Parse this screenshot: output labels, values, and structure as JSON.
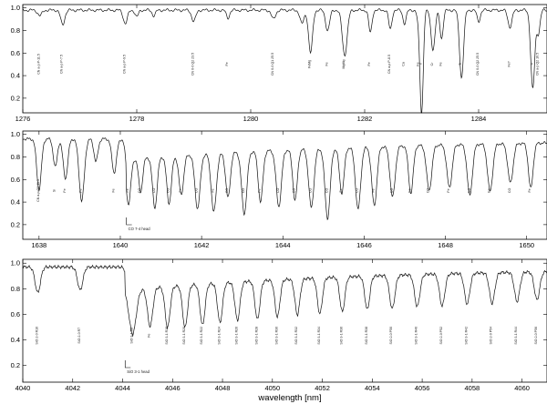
{
  "chart_data": {
    "xlabel": "wavelength [nm]",
    "panels": [
      {
        "type": "line",
        "xlim": [
          1276,
          1285.2
        ],
        "ylim": [
          0.07,
          1.03
        ],
        "xticks": [
          1276,
          1278,
          1280,
          1282,
          1284
        ],
        "yticks": [
          0.2,
          0.4,
          0.6,
          0.8,
          1.0
        ],
        "ytick_labels": [
          "0.2",
          "0.4",
          "0.6",
          "0.8",
          "1.0"
        ],
        "continuum": 0.98,
        "lines": [
          {
            "x": 1276.3,
            "depth": 0.05,
            "width": 0.05,
            "label": "CN a-p P-11.5"
          },
          {
            "x": 1276.7,
            "depth": 0.13,
            "width": 0.05,
            "label": "CN a-p P-7.5"
          },
          {
            "x": 1277.8,
            "depth": 0.12,
            "width": 0.05,
            "label": "CN a-p P-9.5"
          },
          {
            "x": 1278.0,
            "depth": 0.06,
            "width": 0.04,
            "label": ""
          },
          {
            "x": 1278.3,
            "depth": 0.05,
            "width": 0.04,
            "label": ""
          },
          {
            "x": 1279.0,
            "depth": 0.1,
            "width": 0.05,
            "label": "CN 0-0 Q2 23.5"
          },
          {
            "x": 1279.6,
            "depth": 0.07,
            "width": 0.04,
            "label": "Fe"
          },
          {
            "x": 1280.4,
            "depth": 0.08,
            "width": 0.05,
            "label": "CN 0-0 Q1 25.5"
          },
          {
            "x": 1280.9,
            "depth": 0.12,
            "width": 0.05,
            "label": ""
          },
          {
            "x": 1281.05,
            "depth": 0.38,
            "width": 0.05,
            "label": "FeMg"
          },
          {
            "x": 1281.35,
            "depth": 0.18,
            "width": 0.05,
            "label": "Fe"
          },
          {
            "x": 1281.65,
            "depth": 0.4,
            "width": 0.06,
            "label": "MgMg"
          },
          {
            "x": 1282.1,
            "depth": 0.2,
            "width": 0.04,
            "label": "Fe"
          },
          {
            "x": 1282.45,
            "depth": 0.17,
            "width": 0.04,
            "label": "CN a-p P-8.5"
          },
          {
            "x": 1282.7,
            "depth": 0.12,
            "width": 0.04,
            "label": "Ca"
          },
          {
            "x": 1282.95,
            "depth": 0.1,
            "width": 0.04,
            "label": "Fe"
          },
          {
            "x": 1283.0,
            "depth": 0.9,
            "width": 0.04,
            "label": "Ti"
          },
          {
            "x": 1283.2,
            "depth": 0.35,
            "width": 0.05,
            "label": "Cr"
          },
          {
            "x": 1283.35,
            "depth": 0.25,
            "width": 0.04,
            "label": "Fe"
          },
          {
            "x": 1283.7,
            "depth": 0.6,
            "width": 0.05,
            "label": "Ti"
          },
          {
            "x": 1284.0,
            "depth": 0.1,
            "width": 0.04,
            "label": "CN 0-0 Q2 25.5"
          },
          {
            "x": 1284.55,
            "depth": 0.15,
            "width": 0.05,
            "label": "Fe?"
          },
          {
            "x": 1284.95,
            "depth": 0.7,
            "width": 0.05,
            "label": "Ti"
          },
          {
            "x": 1285.05,
            "depth": 0.2,
            "width": 0.04,
            "label": "CN a-p Q2 10.5"
          }
        ],
        "band_labels": []
      },
      {
        "type": "line",
        "xlim": [
          1637.6,
          1650.5
        ],
        "ylim": [
          0.07,
          1.03
        ],
        "xticks": [
          1638,
          1640,
          1642,
          1644,
          1646,
          1648,
          1650
        ],
        "yticks": [
          0.2,
          0.4,
          0.6,
          0.8,
          1.0
        ],
        "ytick_labels": [
          "0.2",
          "0.4",
          "0.6",
          "0.8",
          "1.0"
        ],
        "continuum": 0.96,
        "lines": [
          {
            "x": 1638.0,
            "depth": 0.45,
            "width": 0.08,
            "label": "CN a-p Q2 11.5"
          },
          {
            "x": 1638.4,
            "depth": 0.25,
            "width": 0.07,
            "label": "Si"
          },
          {
            "x": 1638.65,
            "depth": 0.35,
            "width": 0.08,
            "label": "Fe"
          },
          {
            "x": 1639.05,
            "depth": 0.55,
            "width": 0.09,
            "label": "Fe"
          },
          {
            "x": 1639.4,
            "depth": 0.2,
            "width": 0.07,
            "label": ""
          },
          {
            "x": 1639.85,
            "depth": 0.3,
            "width": 0.08,
            "label": "Fe"
          },
          {
            "x": 1640.2,
            "depth": 0.4,
            "width": 0.08,
            "label": "Fe"
          },
          {
            "x": 1640.5,
            "depth": 0.3,
            "width": 0.07,
            "label": "CO"
          },
          {
            "x": 1640.85,
            "depth": 0.45,
            "width": 0.08,
            "label": "CO"
          },
          {
            "x": 1641.2,
            "depth": 0.42,
            "width": 0.08,
            "label": "CO"
          },
          {
            "x": 1641.5,
            "depth": 0.35,
            "width": 0.08,
            "label": "Fe"
          },
          {
            "x": 1641.9,
            "depth": 0.48,
            "width": 0.09,
            "label": "CO"
          },
          {
            "x": 1642.3,
            "depth": 0.52,
            "width": 0.09,
            "label": "Fe"
          },
          {
            "x": 1642.65,
            "depth": 0.4,
            "width": 0.08,
            "label": "CO"
          },
          {
            "x": 1643.05,
            "depth": 0.55,
            "width": 0.09,
            "label": "CO"
          },
          {
            "x": 1643.45,
            "depth": 0.45,
            "width": 0.08,
            "label": "Fe"
          },
          {
            "x": 1643.9,
            "depth": 0.5,
            "width": 0.09,
            "label": "CO"
          },
          {
            "x": 1644.3,
            "depth": 0.45,
            "width": 0.08,
            "label": "CO"
          },
          {
            "x": 1644.7,
            "depth": 0.52,
            "width": 0.09,
            "label": "CO"
          },
          {
            "x": 1645.1,
            "depth": 0.62,
            "width": 0.09,
            "label": "CO"
          },
          {
            "x": 1645.45,
            "depth": 0.4,
            "width": 0.08,
            "label": "Fe"
          },
          {
            "x": 1645.85,
            "depth": 0.55,
            "width": 0.09,
            "label": "CO"
          },
          {
            "x": 1646.25,
            "depth": 0.52,
            "width": 0.09,
            "label": "Fe"
          },
          {
            "x": 1646.7,
            "depth": 0.45,
            "width": 0.09,
            "label": "CO"
          },
          {
            "x": 1647.15,
            "depth": 0.42,
            "width": 0.08,
            "label": "Fe"
          },
          {
            "x": 1647.6,
            "depth": 0.4,
            "width": 0.09,
            "label": "CO"
          },
          {
            "x": 1648.1,
            "depth": 0.38,
            "width": 0.09,
            "label": "Fe"
          },
          {
            "x": 1648.6,
            "depth": 0.45,
            "width": 0.09,
            "label": "CO"
          },
          {
            "x": 1649.1,
            "depth": 0.42,
            "width": 0.09,
            "label": "Fe"
          },
          {
            "x": 1649.6,
            "depth": 0.35,
            "width": 0.09,
            "label": "CO"
          },
          {
            "x": 1650.1,
            "depth": 0.4,
            "width": 0.08,
            "label": "Fe"
          }
        ],
        "band_labels": [
          "CO 7-4 head"
        ],
        "band_heads": [
          1640.15
        ]
      },
      {
        "type": "line",
        "xlim": [
          4040,
          4061
        ],
        "ylim": [
          0.07,
          1.03
        ],
        "xticks": [
          4040,
          4042,
          4044,
          4046,
          4048,
          4050,
          4052,
          4054,
          4056,
          4058,
          4060
        ],
        "yticks": [
          0.2,
          0.4,
          0.6,
          0.8,
          1.0
        ],
        "ytick_labels": [
          "0.2",
          "0.4",
          "0.6",
          "0.8",
          "1.0"
        ],
        "continuum": 0.97,
        "lines": [
          {
            "x": 4040.6,
            "depth": 0.2,
            "width": 0.15,
            "label": "SiO 2-0 R10"
          },
          {
            "x": 4042.3,
            "depth": 0.18,
            "width": 0.15,
            "label": "SiO 2-0 R7"
          },
          {
            "x": 4044.4,
            "depth": 0.35,
            "width": 0.2,
            "label": "SiO 3-1 R8"
          },
          {
            "x": 4045.1,
            "depth": 0.3,
            "width": 0.15,
            "label": "Fe"
          },
          {
            "x": 4045.8,
            "depth": 0.32,
            "width": 0.14,
            "label": "SiO 3-1 R18"
          },
          {
            "x": 4046.5,
            "depth": 0.33,
            "width": 0.14,
            "label": "SiO 3-1 R20"
          },
          {
            "x": 4047.2,
            "depth": 0.32,
            "width": 0.14,
            "label": "SiO 3-1 R22"
          },
          {
            "x": 4047.9,
            "depth": 0.31,
            "width": 0.14,
            "label": "SiO 3-1 R24"
          },
          {
            "x": 4048.6,
            "depth": 0.3,
            "width": 0.14,
            "label": "SiO 3-1 R26"
          },
          {
            "x": 4049.4,
            "depth": 0.3,
            "width": 0.14,
            "label": "SiO 3-1 R28"
          },
          {
            "x": 4050.2,
            "depth": 0.29,
            "width": 0.14,
            "label": "SiO 3-1 R30"
          },
          {
            "x": 4051.0,
            "depth": 0.28,
            "width": 0.14,
            "label": "SiO 3-1 R32"
          },
          {
            "x": 4051.9,
            "depth": 0.28,
            "width": 0.14,
            "label": "SiO 3-1 R34"
          },
          {
            "x": 4052.8,
            "depth": 0.27,
            "width": 0.14,
            "label": "SiO 3-1 R36"
          },
          {
            "x": 4053.8,
            "depth": 0.26,
            "width": 0.14,
            "label": "SiO 3-1 R38"
          },
          {
            "x": 4054.8,
            "depth": 0.26,
            "width": 0.15,
            "label": "SiO 2-0 P50"
          },
          {
            "x": 4055.8,
            "depth": 0.25,
            "width": 0.15,
            "label": "SiO 3-1 R40"
          },
          {
            "x": 4056.8,
            "depth": 0.25,
            "width": 0.15,
            "label": "SiO 2-0 P52"
          },
          {
            "x": 4057.8,
            "depth": 0.24,
            "width": 0.15,
            "label": "SiO 3-1 R42"
          },
          {
            "x": 4058.8,
            "depth": 0.24,
            "width": 0.15,
            "label": "SiO 2-0 P54"
          },
          {
            "x": 4059.8,
            "depth": 0.23,
            "width": 0.15,
            "label": "SiO 3-1 R44"
          },
          {
            "x": 4060.6,
            "depth": 0.22,
            "width": 0.15,
            "label": "SiO 2-0 P56"
          }
        ],
        "band_labels": [
          "SiO 3-1 head"
        ],
        "band_heads": [
          4044.1
        ]
      }
    ]
  }
}
